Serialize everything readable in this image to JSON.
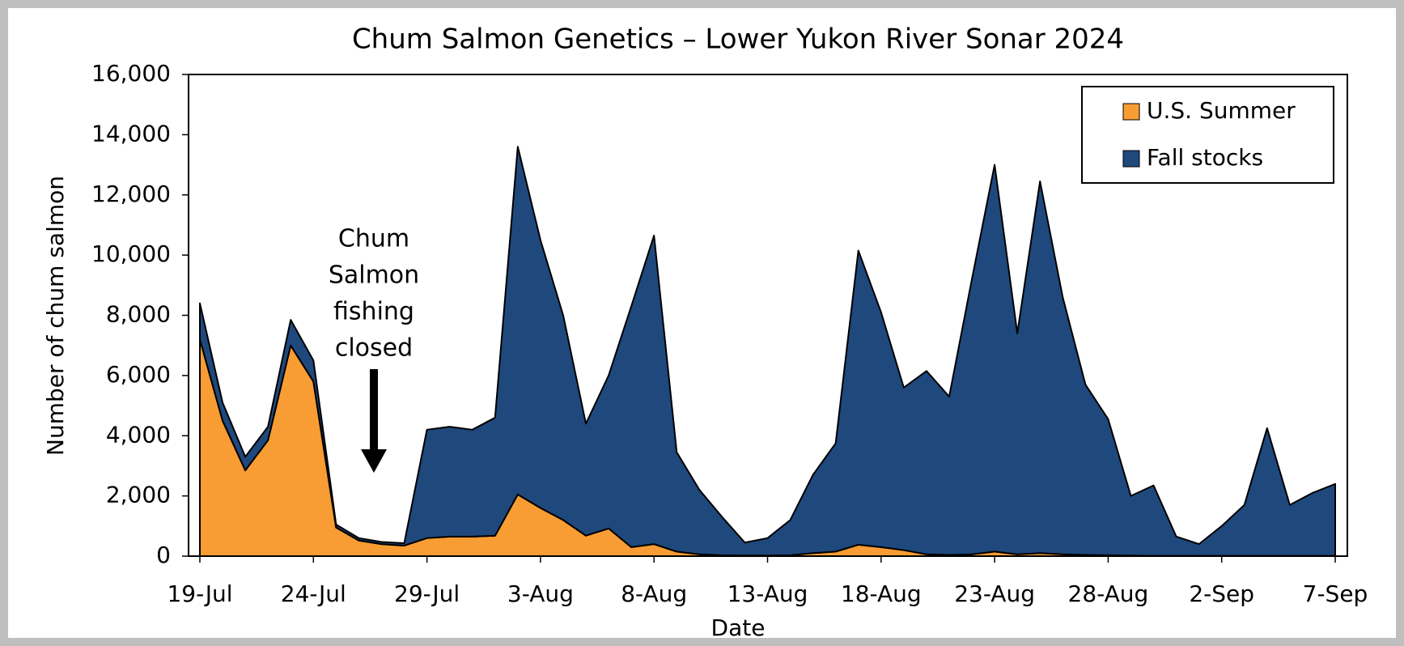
{
  "chart_data": {
    "type": "stacked_area",
    "title": "Chum Salmon Genetics – Lower Yukon River Sonar 2024",
    "x_label": "Date",
    "y_label": "Number of chum salmon",
    "annotation": [
      "Chum",
      "Salmon",
      "fishing",
      "closed"
    ],
    "categories": [
      "19-Jul",
      null,
      null,
      null,
      null,
      "24-Jul",
      null,
      null,
      null,
      null,
      "29-Jul",
      null,
      null,
      null,
      null,
      "3-Aug",
      null,
      null,
      null,
      null,
      "8-Aug",
      null,
      null,
      null,
      null,
      "13-Aug",
      null,
      null,
      null,
      null,
      "18-Aug",
      null,
      null,
      null,
      null,
      "23-Aug",
      null,
      null,
      null,
      null,
      "28-Aug",
      null,
      null,
      null,
      null,
      "2-Sep",
      null,
      null,
      null,
      null,
      "7-Sep"
    ],
    "series": [
      {
        "name": "U.S. Summer",
        "color": "#f89c34",
        "values": [
          7200,
          4500,
          2850,
          3850,
          7000,
          5800,
          950,
          520,
          400,
          350,
          600,
          650,
          650,
          680,
          2050,
          1600,
          1200,
          680,
          920,
          300,
          400,
          150,
          60,
          30,
          20,
          20,
          30,
          100,
          150,
          380,
          300,
          200,
          60,
          40,
          60,
          150,
          60,
          100,
          60,
          40,
          30,
          20,
          10,
          10,
          10,
          10,
          10,
          10,
          10,
          10,
          10
        ]
      },
      {
        "name": "Fall stocks",
        "color": "#1f497d",
        "values": [
          1200,
          600,
          450,
          450,
          850,
          700,
          100,
          80,
          70,
          80,
          3600,
          3650,
          3550,
          3920,
          11550,
          8900,
          6800,
          3720,
          5080,
          8000,
          10250,
          3300,
          2140,
          1270,
          430,
          580,
          1170,
          2600,
          3600,
          9770,
          7800,
          5400,
          6090,
          5260,
          9140,
          12850,
          7340,
          12350,
          8540,
          5660,
          4520,
          1980,
          2340,
          640,
          390,
          990,
          1690,
          4240,
          1690,
          2090,
          2390
        ]
      }
    ],
    "ylim": [
      0,
      16000
    ],
    "yticks": [
      0,
      {
        "value": 2000,
        "label": "2,000"
      },
      {
        "value": 4000,
        "label": "4,000"
      },
      {
        "value": 6000,
        "label": "6,000"
      },
      {
        "value": 8000,
        "label": "8,000"
      },
      {
        "value": 10000,
        "label": "10,000"
      },
      {
        "value": 12000,
        "label": "12,000"
      },
      {
        "value": 14000,
        "label": "14,000"
      },
      {
        "value": 16000,
        "label": "16,000"
      }
    ],
    "grid": false,
    "legend": "upper right"
  }
}
